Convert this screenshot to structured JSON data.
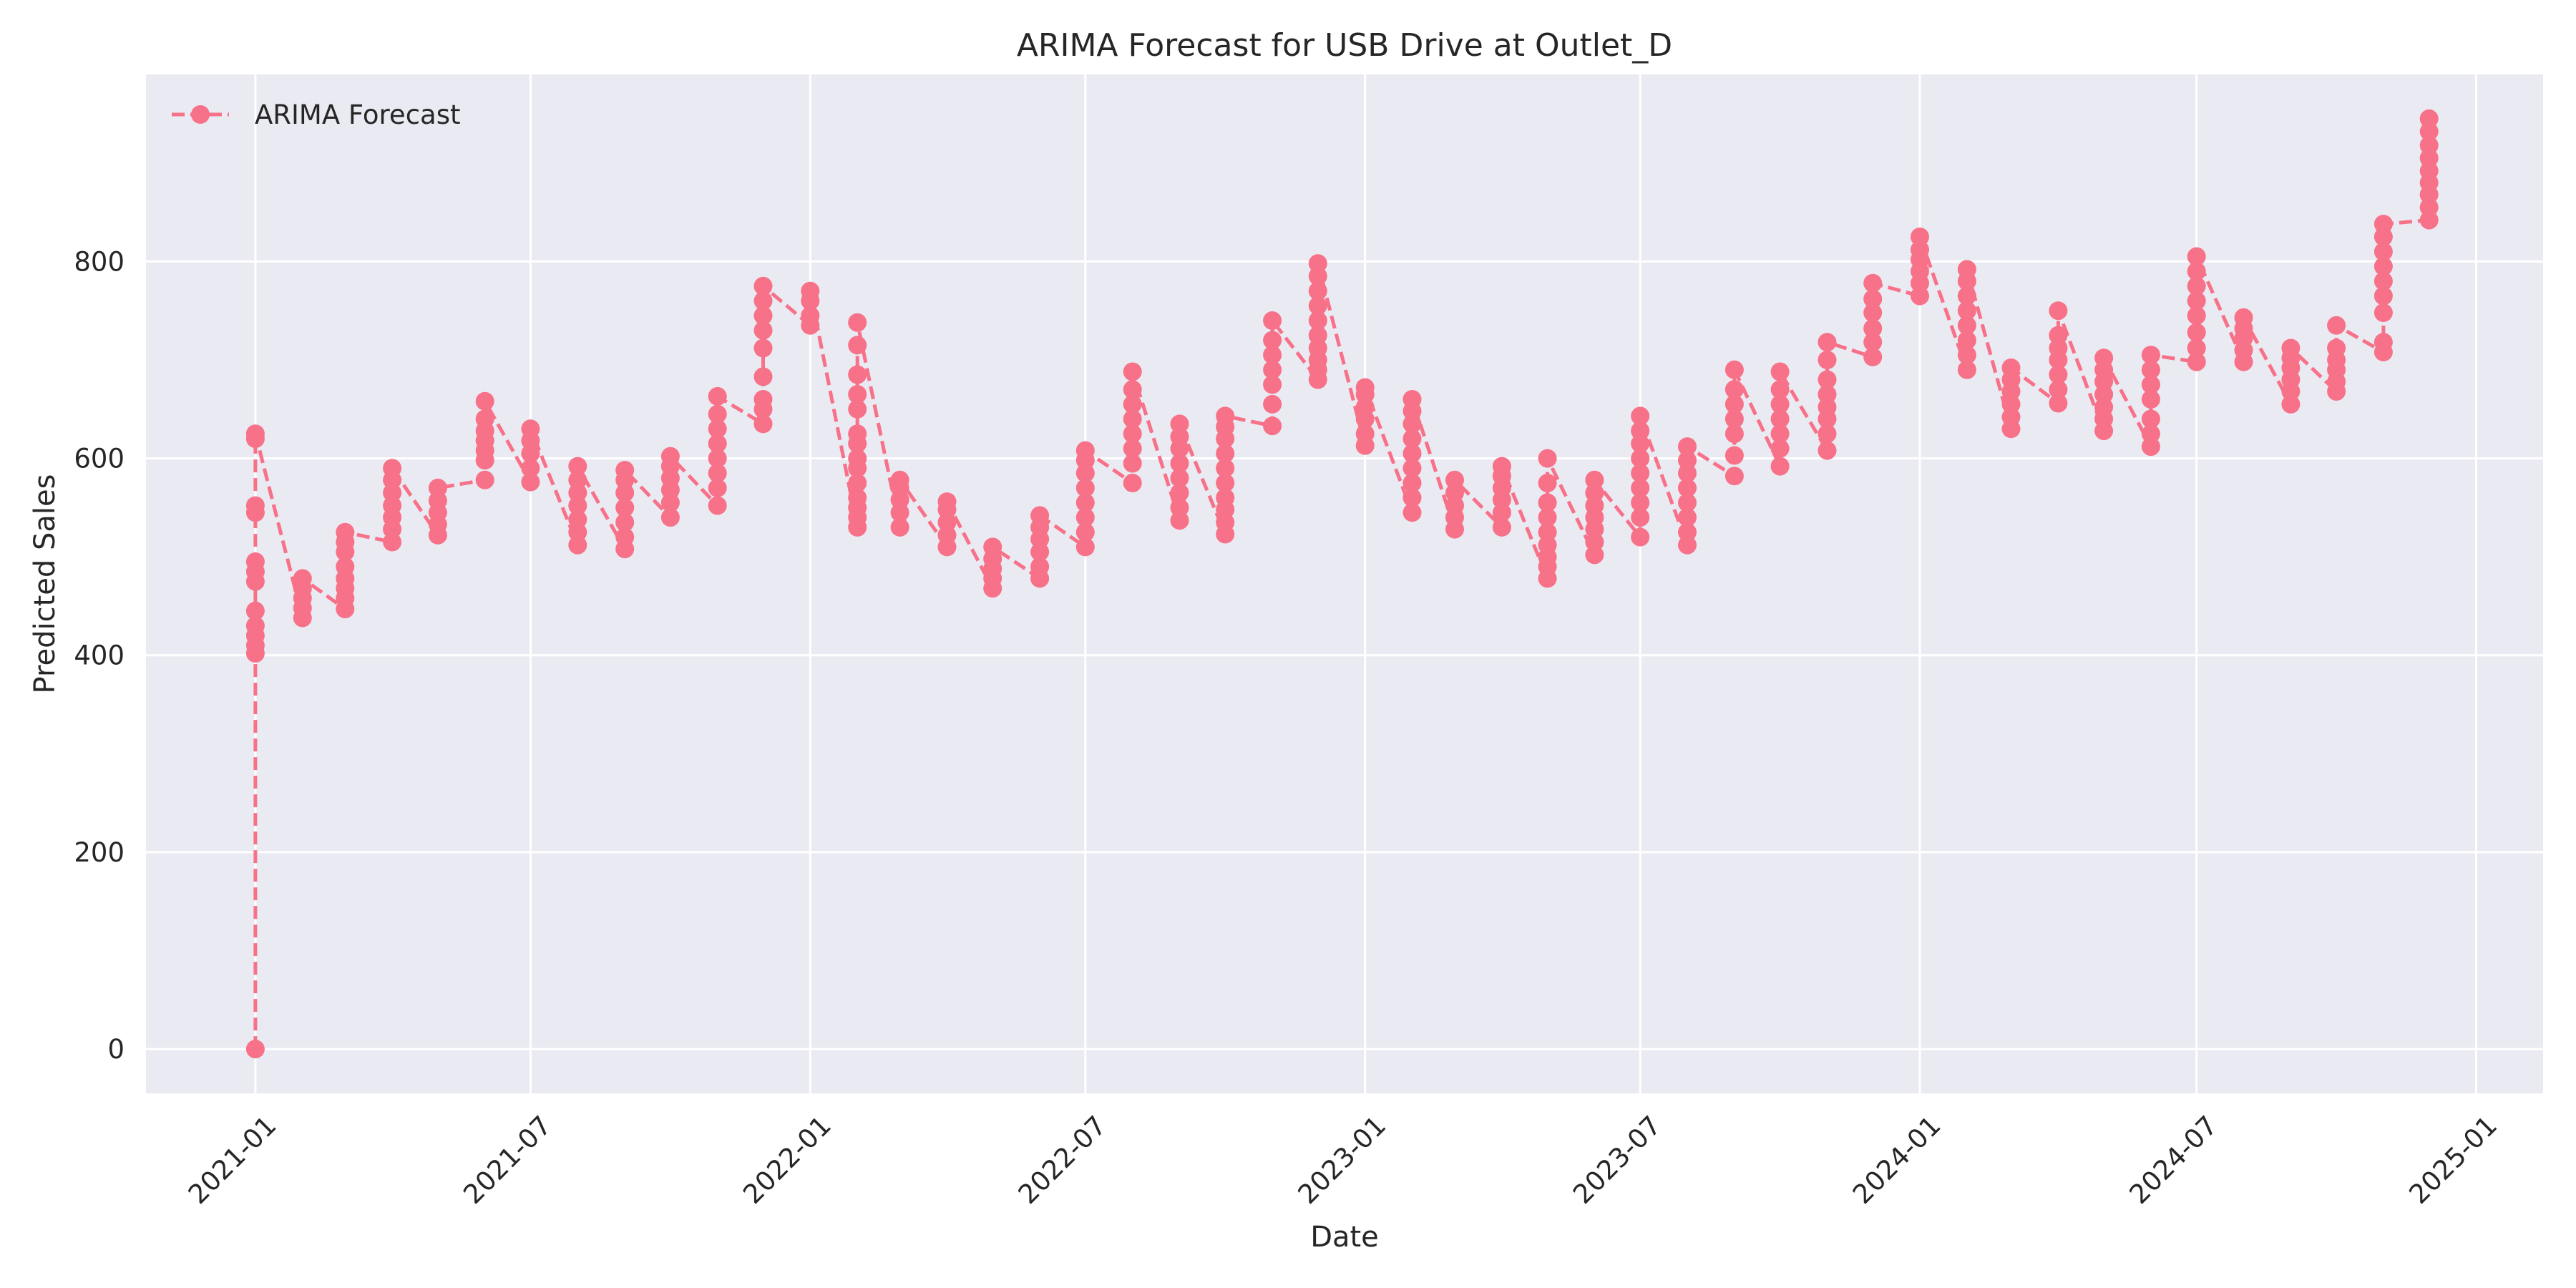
{
  "chart_data": {
    "type": "line",
    "title": "ARIMA Forecast for USB Drive at Outlet_D",
    "xlabel": "Date",
    "ylabel": "Predicted Sales",
    "xlim": [
      "2020-10-21",
      "2025-02-14"
    ],
    "ylim": [
      -45,
      990
    ],
    "x_ticks": [
      "2021-01",
      "2021-07",
      "2022-01",
      "2022-07",
      "2023-01",
      "2023-07",
      "2024-01",
      "2024-07",
      "2025-01"
    ],
    "y_ticks": [
      0,
      200,
      400,
      600,
      800
    ],
    "grid": true,
    "legend": {
      "placement": "top-left",
      "entries": [
        "ARIMA Forecast"
      ]
    },
    "colors": {
      "series": "#f77189",
      "plot_background": "#eaeaf2",
      "grid": "#ffffff"
    },
    "series": [
      {
        "name": "ARIMA Forecast",
        "style": "dashed line with circle markers",
        "groups": [
          {
            "date": "2021-01-01",
            "values": [
              0,
              402,
              410,
              420,
              430,
              445,
              475,
              485,
              495,
              545,
              552,
              620,
              625
            ]
          },
          {
            "date": "2021-02-01",
            "values": [
              438,
              448,
              458,
              468,
              478
            ]
          },
          {
            "date": "2021-03-01",
            "values": [
              447,
              458,
              468,
              478,
              490,
              505,
              515,
              525
            ]
          },
          {
            "date": "2021-04-01",
            "values": [
              515,
              528,
              540,
              552,
              565,
              578,
              590
            ]
          },
          {
            "date": "2021-05-01",
            "values": [
              522,
              533,
              545,
              557,
              570
            ]
          },
          {
            "date": "2021-06-01",
            "values": [
              578,
              598,
              608,
              618,
              628,
              640,
              658
            ]
          },
          {
            "date": "2021-07-01",
            "values": [
              576,
              590,
              605,
              618,
              630
            ]
          },
          {
            "date": "2021-08-01",
            "values": [
              512,
              525,
              538,
              552,
              565,
              578,
              592
            ]
          },
          {
            "date": "2021-09-01",
            "values": [
              508,
              520,
              535,
              550,
              565,
              578,
              588
            ]
          },
          {
            "date": "2021-10-01",
            "values": [
              540,
              555,
              568,
              580,
              592,
              602
            ]
          },
          {
            "date": "2021-11-01",
            "values": [
              552,
              570,
              585,
              600,
              615,
              630,
              645,
              663
            ]
          },
          {
            "date": "2021-12-01",
            "values": [
              635,
              650,
              660,
              683,
              712,
              730,
              745,
              760,
              775
            ]
          },
          {
            "date": "2022-01-01",
            "values": [
              735,
              745,
              760,
              770
            ]
          },
          {
            "date": "2022-02-01",
            "values": [
              530,
              540,
              550,
              560,
              575,
              590,
              600,
              615,
              625,
              650,
              665,
              685,
              715,
              738
            ]
          },
          {
            "date": "2022-03-01",
            "values": [
              530,
              545,
              558,
              570,
              578
            ]
          },
          {
            "date": "2022-04-01",
            "values": [
              510,
              522,
              535,
              548,
              556
            ]
          },
          {
            "date": "2022-05-01",
            "values": [
              468,
              478,
              488,
              498,
              510
            ]
          },
          {
            "date": "2022-06-01",
            "values": [
              478,
              490,
              505,
              518,
              530,
              542
            ]
          },
          {
            "date": "2022-07-01",
            "values": [
              510,
              525,
              540,
              555,
              570,
              585,
              598,
              608
            ]
          },
          {
            "date": "2022-08-01",
            "values": [
              575,
              595,
              610,
              625,
              640,
              655,
              670,
              688
            ]
          },
          {
            "date": "2022-09-01",
            "values": [
              537,
              550,
              565,
              580,
              595,
              610,
              622,
              635
            ]
          },
          {
            "date": "2022-10-01",
            "values": [
              523,
              535,
              548,
              560,
              575,
              590,
              605,
              620,
              632,
              643
            ]
          },
          {
            "date": "2022-11-01",
            "values": [
              633,
              655,
              675,
              690,
              705,
              720,
              740
            ]
          },
          {
            "date": "2022-12-01",
            "values": [
              680,
              690,
              700,
              712,
              725,
              740,
              755,
              770,
              785,
              798
            ]
          },
          {
            "date": "2023-01-01",
            "values": [
              613,
              625,
              640,
              652,
              665,
              672
            ]
          },
          {
            "date": "2023-02-01",
            "values": [
              545,
              560,
              575,
              590,
              605,
              620,
              635,
              648,
              660
            ]
          },
          {
            "date": "2023-03-01",
            "values": [
              528,
              540,
              552,
              565,
              578
            ]
          },
          {
            "date": "2023-04-01",
            "values": [
              530,
              545,
              558,
              570,
              582,
              592
            ]
          },
          {
            "date": "2023-05-01",
            "values": [
              478,
              490,
              500,
              512,
              525,
              540,
              555,
              575,
              600
            ]
          },
          {
            "date": "2023-06-01",
            "values": [
              502,
              515,
              528,
              540,
              552,
              565,
              578
            ]
          },
          {
            "date": "2023-07-01",
            "values": [
              520,
              540,
              555,
              570,
              585,
              600,
              615,
              628,
              643
            ]
          },
          {
            "date": "2023-08-01",
            "values": [
              512,
              525,
              540,
              555,
              570,
              585,
              598,
              612
            ]
          },
          {
            "date": "2023-09-01",
            "values": [
              582,
              603,
              625,
              640,
              655,
              670,
              690
            ]
          },
          {
            "date": "2023-10-01",
            "values": [
              592,
              610,
              625,
              640,
              655,
              670,
              688
            ]
          },
          {
            "date": "2023-11-01",
            "values": [
              608,
              625,
              640,
              652,
              665,
              680,
              700,
              718
            ]
          },
          {
            "date": "2023-12-01",
            "values": [
              703,
              718,
              732,
              748,
              762,
              778
            ]
          },
          {
            "date": "2024-01-01",
            "values": [
              765,
              778,
              790,
              802,
              812,
              825
            ]
          },
          {
            "date": "2024-02-01",
            "values": [
              690,
              705,
              720,
              735,
              750,
              765,
              780,
              792
            ]
          },
          {
            "date": "2024-03-01",
            "values": [
              630,
              642,
              655,
              668,
              680,
              692
            ]
          },
          {
            "date": "2024-04-01",
            "values": [
              656,
              670,
              685,
              700,
              712,
              725,
              750
            ]
          },
          {
            "date": "2024-05-01",
            "values": [
              628,
              640,
              652,
              665,
              678,
              690,
              702
            ]
          },
          {
            "date": "2024-06-01",
            "values": [
              612,
              625,
              640,
              660,
              675,
              690,
              705
            ]
          },
          {
            "date": "2024-07-01",
            "values": [
              698,
              712,
              728,
              745,
              760,
              775,
              790,
              805
            ]
          },
          {
            "date": "2024-08-01",
            "values": [
              698,
              710,
              722,
              732,
              743
            ]
          },
          {
            "date": "2024-09-01",
            "values": [
              655,
              668,
              680,
              692,
              702,
              712
            ]
          },
          {
            "date": "2024-10-01",
            "values": [
              668,
              678,
              690,
              700,
              712,
              735
            ]
          },
          {
            "date": "2024-11-01",
            "values": [
              708,
              718,
              748,
              765,
              780,
              795,
              810,
              825,
              838
            ]
          },
          {
            "date": "2024-12-01",
            "values": [
              842,
              855,
              868,
              880,
              892,
              905,
              918,
              932,
              945
            ]
          }
        ]
      }
    ]
  }
}
